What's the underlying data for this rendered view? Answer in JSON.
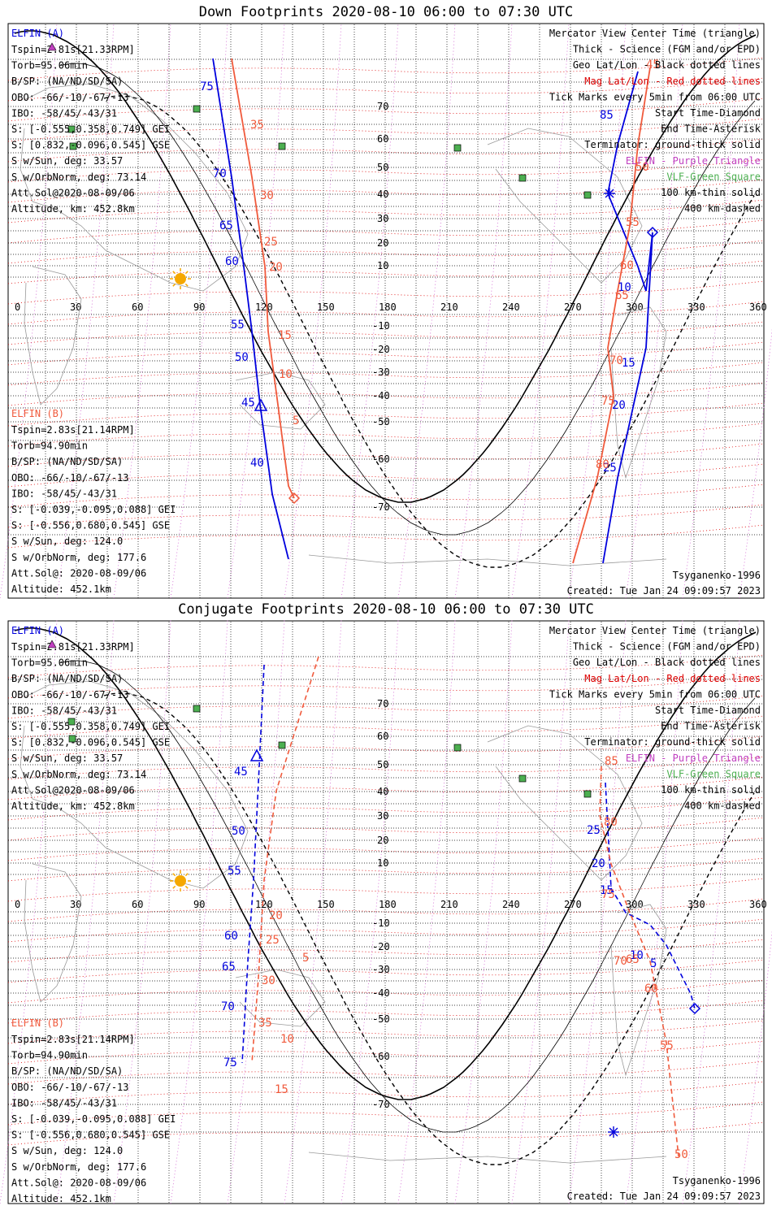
{
  "panels": [
    {
      "id": "down",
      "title": "Down Footprints 2020-08-10 06:00 to 07:30 UTC",
      "elfin_a": {
        "name": "ELFIN (A)",
        "tspin": "Tspin=2.81s[21.33RPM]",
        "torb": "Torb=95.06min",
        "bsp": "B/SP: (NA/ND/SD/SA)",
        "obo": "OBO: -66/-10/-67/-13",
        "ibo": "IBO: -58/45/-43/31",
        "s_gei": "S: [-0.555,0.358,0.749] GEI",
        "s_gse": "S: [0.832,-0.096,0.545] GSE",
        "sun": "S w/Sun, deg: 33.57",
        "orbnorm": "S w/OrbNorm, deg: 73.14",
        "attsol": "Att.Sol@2020-08-09/06",
        "alt": "Altitude, km: 452.8km"
      },
      "elfin_b": {
        "name": "ELFIN (B)",
        "tspin": "Tspin=2.83s[21.14RPM]",
        "torb": "Torb=94.90min",
        "bsp": "B/SP: (NA/ND/SD/SA)",
        "obo": "OBO: -66/-10/-67/-13",
        "ibo": "IBO: -58/45/-43/31",
        "s_gei": "S: [-0.039,-0.095,0.088] GEI",
        "s_gse": "S: [-0.556,0.680,0.545] GSE",
        "sun": "S w/Sun, deg: 124.0",
        "orbnorm": "S w/OrbNorm, deg: 177.6",
        "attsol": "Att.Sol@: 2020-08-09/06",
        "alt": "Altitude: 452.1km"
      },
      "legend": [
        "Mercator View Center Time (triangle)",
        "Thick - Science (FGM and/or EPD)",
        "Geo Lat/Lon - Black dotted lines",
        "Mag Lat/Lon - Red dotted lines",
        "Tick Marks every 5min from 06:00 UTC",
        "Start Time-Diamond",
        "End Time-Asterisk",
        "Terminator: ground-thick solid",
        "ELFIN - Purple Triangle",
        "VLF-Green Square",
        "100 km-thin solid",
        "400 km-dashed"
      ],
      "model": "Tsyganenko-1996",
      "created": "Created: Tue Jan 24 09:09:57 2023",
      "lon_labels": [
        "0",
        "30",
        "60",
        "90",
        "120",
        "150",
        "180",
        "210",
        "240",
        "270",
        "300",
        "330",
        "360"
      ],
      "lat_labels": [
        "70",
        "60",
        "50",
        "40",
        "30",
        "20",
        "10",
        "-10",
        "-20",
        "-30",
        "-40",
        "-50",
        "-60",
        "-70"
      ],
      "track_a_labels": [
        "75",
        "70",
        "65",
        "60",
        "55",
        "50",
        "45",
        "40",
        "85",
        "10",
        "15",
        "20",
        "25"
      ],
      "track_b_labels": [
        "35",
        "30",
        "25",
        "20",
        "15",
        "10",
        "5",
        "45",
        "50",
        "55",
        "60",
        "65",
        "70",
        "75",
        "80"
      ]
    },
    {
      "id": "conjugate",
      "title": "Conjugate Footprints 2020-08-10 06:00 to 07:30 UTC",
      "elfin_a": {
        "name": "ELFIN (A)",
        "tspin": "Tspin=2.81s[21.33RPM]",
        "torb": "Torb=95.06min",
        "bsp": "B/SP: (NA/ND/SD/SA)",
        "obo": "OBO: -66/-10/-67/-13",
        "ibo": "IBO: -58/45/-43/31",
        "s_gei": "S: [-0.555,0.358,0.749] GEI",
        "s_gse": "S: [0.832,-0.096,0.545] GSE",
        "sun": "S w/Sun, deg: 33.57",
        "orbnorm": "S w/OrbNorm, deg: 73.14",
        "attsol": "Att.Sol@2020-08-09/06",
        "alt": "Altitude, km: 452.8km"
      },
      "elfin_b": {
        "name": "ELFIN (B)",
        "tspin": "Tspin=2.83s[21.14RPM]",
        "torb": "Torb=94.90min",
        "bsp": "B/SP: (NA/ND/SD/SA)",
        "obo": "OBO: -66/-10/-67/-13",
        "ibo": "IBO: -58/45/-43/31",
        "s_gei": "S: [-0.039,-0.095,0.088] GEI",
        "s_gse": "S: [-0.556,0.680,0.545] GSE",
        "sun": "S w/Sun, deg: 124.0",
        "orbnorm": "S w/OrbNorm, deg: 177.6",
        "attsol": "Att.Sol@: 2020-08-09/06",
        "alt": "Altitude: 452.1km"
      },
      "legend": [
        "Mercator View Center Time (triangle)",
        "Thick - Science (FGM and/or EPD)",
        "Geo Lat/Lon - Black dotted lines",
        "Mag Lat/Lon - Red dotted lines",
        "Tick Marks every 5min from 06:00 UTC",
        "Start Time-Diamond",
        "End Time-Asterisk",
        "Terminator: ground-thick solid",
        "ELFIN - Purple Triangle",
        "VLF-Green Square",
        "100 km-thin solid",
        "400 km-dashed"
      ],
      "model": "Tsyganenko-1996",
      "created": "Created: Tue Jan 24 09:09:57 2023",
      "lon_labels": [
        "0",
        "30",
        "60",
        "90",
        "120",
        "150",
        "180",
        "210",
        "240",
        "270",
        "300",
        "330",
        "360"
      ],
      "lat_labels": [
        "70",
        "60",
        "50",
        "40",
        "30",
        "20",
        "10",
        "-10",
        "-20",
        "-30",
        "-40",
        "-50",
        "-60",
        "-70"
      ],
      "track_a_labels": [
        "45",
        "50",
        "55",
        "60",
        "65",
        "70",
        "75",
        "25",
        "20",
        "15",
        "10",
        "5"
      ],
      "track_b_labels": [
        "5",
        "10",
        "15",
        "20",
        "25",
        "30",
        "35",
        "85",
        "80",
        "75",
        "70",
        "65",
        "60",
        "55",
        "50"
      ]
    }
  ],
  "colors": {
    "elfin_a": "#0000dd",
    "elfin_b": "#f05a3c",
    "mag_grid": "#dd0000",
    "elfin_marker": "#c040c0",
    "vlf": "#4caf50",
    "sun": "#f5a800"
  },
  "icons": [
    "sun-icon",
    "vlf-square-icon",
    "elfin-triangle-icon",
    "start-diamond-icon",
    "end-asterisk-icon"
  ]
}
